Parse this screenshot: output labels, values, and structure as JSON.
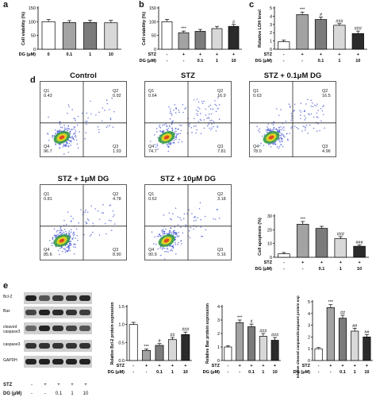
{
  "panels": {
    "a": "a",
    "b": "b",
    "c": "c",
    "d": "d",
    "e": "e"
  },
  "bar_colors": [
    "#ffffff",
    "#a3a3a3",
    "#7b7b7b",
    "#d8d8d8",
    "#2b2b2b"
  ],
  "chart_data": [
    {
      "type": "bar",
      "panel": "a",
      "categories": [
        "0",
        "0.1",
        "1",
        "10"
      ],
      "values": [
        100,
        97,
        97,
        96
      ],
      "errors": [
        8,
        7,
        8,
        9
      ],
      "ylabel": "Cell viability (%)",
      "ylim": [
        0,
        150
      ],
      "yticks": [
        "0",
        "50",
        "100",
        "150"
      ],
      "condition_rows": [
        {
          "label": "DG (μM)",
          "values": [
            "0",
            "0.1",
            "1",
            "10"
          ]
        }
      ],
      "annotations": [
        "",
        "",
        "",
        ""
      ]
    },
    {
      "type": "bar",
      "panel": "b",
      "categories": [
        "-",
        "+",
        "+",
        "+",
        "+"
      ],
      "values": [
        100,
        60,
        65,
        75,
        83
      ],
      "errors": [
        8,
        6,
        7,
        8,
        7
      ],
      "ylabel": "Cell viability (%)",
      "ylim": [
        0,
        150
      ],
      "yticks": [
        "0",
        "50",
        "100",
        "150"
      ],
      "condition_rows": [
        {
          "label": "STZ",
          "values": [
            "-",
            "+",
            "+",
            "+",
            "+"
          ]
        },
        {
          "label": "DG (μM)",
          "values": [
            "-",
            "-",
            "0.1",
            "1",
            "10"
          ]
        }
      ],
      "annotations": [
        "",
        "***",
        "",
        "",
        "#"
      ]
    },
    {
      "type": "bar",
      "panel": "c",
      "categories": [
        "-",
        "+",
        "+",
        "+",
        "+"
      ],
      "values": [
        0.9,
        4.2,
        3.6,
        2.9,
        1.9
      ],
      "errors": [
        0.2,
        0.3,
        0.3,
        0.2,
        0.3
      ],
      "ylabel": "Relative LDH level",
      "ylim": [
        0,
        5
      ],
      "yticks": [
        "0",
        "1",
        "2",
        "3",
        "4",
        "5"
      ],
      "condition_rows": [
        {
          "label": "STZ",
          "values": [
            "-",
            "+",
            "+",
            "+",
            "+"
          ]
        },
        {
          "label": "DG (μM)",
          "values": [
            "-",
            "-",
            "0.1",
            "1",
            "10"
          ]
        }
      ],
      "annotations": [
        "",
        "***",
        "#",
        "###",
        "###"
      ]
    },
    {
      "type": "bar",
      "panel": "d",
      "categories": [
        "-",
        "+",
        "+",
        "+",
        "+"
      ],
      "values": [
        2.5,
        24,
        21,
        13.5,
        8
      ],
      "errors": [
        1,
        2,
        1.5,
        1.5,
        1
      ],
      "ylabel": "Cell apoptosis (%)",
      "ylim": [
        0,
        30
      ],
      "yticks": [
        "0",
        "10",
        "20",
        "30"
      ],
      "condition_rows": [
        {
          "label": "STZ",
          "values": [
            "-",
            "+",
            "+",
            "+",
            "+"
          ]
        },
        {
          "label": "DG (μM)",
          "values": [
            "-",
            "-",
            "0.1",
            "1",
            "10"
          ]
        }
      ],
      "annotations": [
        "",
        "***",
        "",
        "###",
        "###"
      ]
    },
    {
      "type": "bar",
      "panel": "e1",
      "categories": [
        "-",
        "+",
        "+",
        "+",
        "+"
      ],
      "values": [
        1.0,
        0.28,
        0.42,
        0.58,
        0.72
      ],
      "errors": [
        0.06,
        0.04,
        0.05,
        0.06,
        0.07
      ],
      "ylabel": "Relative Bcl-2 protein expression",
      "ylim": [
        0,
        1.5
      ],
      "yticks": [
        "0.0",
        "0.5",
        "1.0",
        "1.5"
      ],
      "condition_rows": [
        {
          "label": "STZ",
          "values": [
            "-",
            "+",
            "+",
            "+",
            "+"
          ]
        },
        {
          "label": "DG (μM)",
          "values": [
            "-",
            "-",
            "0.1",
            "1",
            "10"
          ]
        }
      ],
      "annotations": [
        "",
        "***",
        "#",
        "##",
        "###"
      ]
    },
    {
      "type": "bar",
      "panel": "e2",
      "categories": [
        "-",
        "+",
        "+",
        "+",
        "+"
      ],
      "values": [
        1.0,
        2.8,
        2.5,
        1.8,
        1.5
      ],
      "errors": [
        0.1,
        0.2,
        0.2,
        0.2,
        0.2
      ],
      "ylabel": "Relative Bax protein expression",
      "ylim": [
        0,
        4
      ],
      "yticks": [
        "0",
        "1",
        "2",
        "3",
        "4"
      ],
      "condition_rows": [
        {
          "label": "STZ",
          "values": [
            "-",
            "+",
            "+",
            "+",
            "+"
          ]
        },
        {
          "label": "DG (μM)",
          "values": [
            "-",
            "-",
            "0.1",
            "1",
            "10"
          ]
        }
      ],
      "annotations": [
        "",
        "***",
        "#",
        "###",
        "###"
      ]
    },
    {
      "type": "bar",
      "panel": "e3",
      "categories": [
        "-",
        "+",
        "+",
        "+",
        "+"
      ],
      "values": [
        1.0,
        4.5,
        3.6,
        2.5,
        2.0
      ],
      "errors": [
        0.1,
        0.25,
        0.25,
        0.25,
        0.2
      ],
      "ylabel": "Relative cleaved caspase3/caspase3 protein expression",
      "ylim": [
        0,
        5
      ],
      "yticks": [
        "0",
        "1",
        "2",
        "3",
        "4",
        "5"
      ],
      "condition_rows": [
        {
          "label": "STZ",
          "values": [
            "-",
            "+",
            "+",
            "+",
            "+"
          ]
        },
        {
          "label": "DG (μM)",
          "values": [
            "-",
            "-",
            "0.1",
            "1",
            "10"
          ]
        }
      ],
      "annotations": [
        "",
        "***",
        "##",
        "##",
        "##"
      ]
    }
  ],
  "flow": {
    "plots": [
      {
        "title": "Control",
        "q1": "Q1",
        "q1v": "0.43",
        "q2": "Q2",
        "q2v": "0.92",
        "q3": "Q3",
        "q3v": "1.93",
        "q4": "Q4",
        "q4v": "96.7"
      },
      {
        "title": "STZ",
        "q1": "Q1",
        "q1v": "0.64",
        "q2": "Q2",
        "q2v": "16.9",
        "q3": "Q3",
        "q3v": "7.81",
        "q4": "Q4",
        "q4v": "74.7"
      },
      {
        "title": "STZ + 0.1μM DG",
        "q1": "Q1",
        "q1v": "0.63",
        "q2": "Q2",
        "q2v": "16.5",
        "q3": "Q3",
        "q3v": "4.96",
        "q4": "Q4",
        "q4v": "78.0"
      },
      {
        "title": "STZ + 1μM DG",
        "q1": "Q1",
        "q1v": "0.81",
        "q2": "Q2",
        "q2v": "4.78",
        "q3": "Q3",
        "q3v": "8.90",
        "q4": "Q4",
        "q4v": "85.6"
      },
      {
        "title": "STZ + 10μM DG",
        "q1": "Q1",
        "q1v": "0.62",
        "q2": "Q2",
        "q2v": "3.18",
        "q3": "Q3",
        "q3v": "5.16",
        "q4": "Q4",
        "q4v": "90.9"
      }
    ]
  },
  "blot": {
    "labels": [
      "Bcl-2",
      "Bax",
      "cleaved caspase3",
      "caspase3",
      "GAPDH"
    ],
    "stz_label": "STZ",
    "dg_label": "DG (μM)",
    "stz_values": [
      "-",
      "+",
      "+",
      "+",
      "+"
    ],
    "dg_values": [
      "-",
      "-",
      "0.1",
      "1",
      "10"
    ]
  }
}
